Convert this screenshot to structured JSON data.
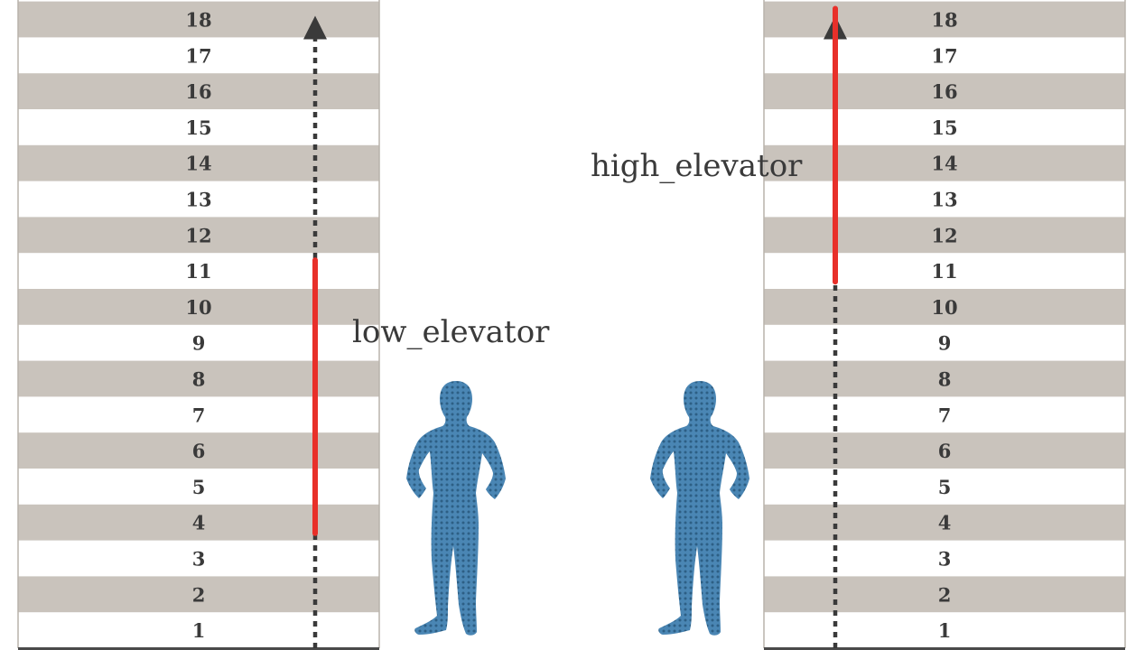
{
  "floors": [
    "1",
    "2",
    "3",
    "4",
    "5",
    "6",
    "7",
    "8",
    "9",
    "10",
    "11",
    "12",
    "13",
    "14",
    "15",
    "16",
    "17",
    "18"
  ],
  "elevators": [
    {
      "label": "low_elevator",
      "served_from": 4,
      "served_to": 11,
      "shaft_top": 18,
      "color": "#e8302a"
    },
    {
      "label": "high_elevator",
      "served_from": 11,
      "served_to": 18,
      "shaft_top": 18,
      "color": "#e8302a"
    }
  ],
  "colors": {
    "band": "#c9c3bc",
    "wall": "#b9b3ac",
    "ground": "#4a4a4a",
    "shaft_dots": "#3a3a3a",
    "person": "#4a86b4",
    "person_pattern": "#2d5f85"
  },
  "icons": [
    "person-icon",
    "person-icon"
  ]
}
